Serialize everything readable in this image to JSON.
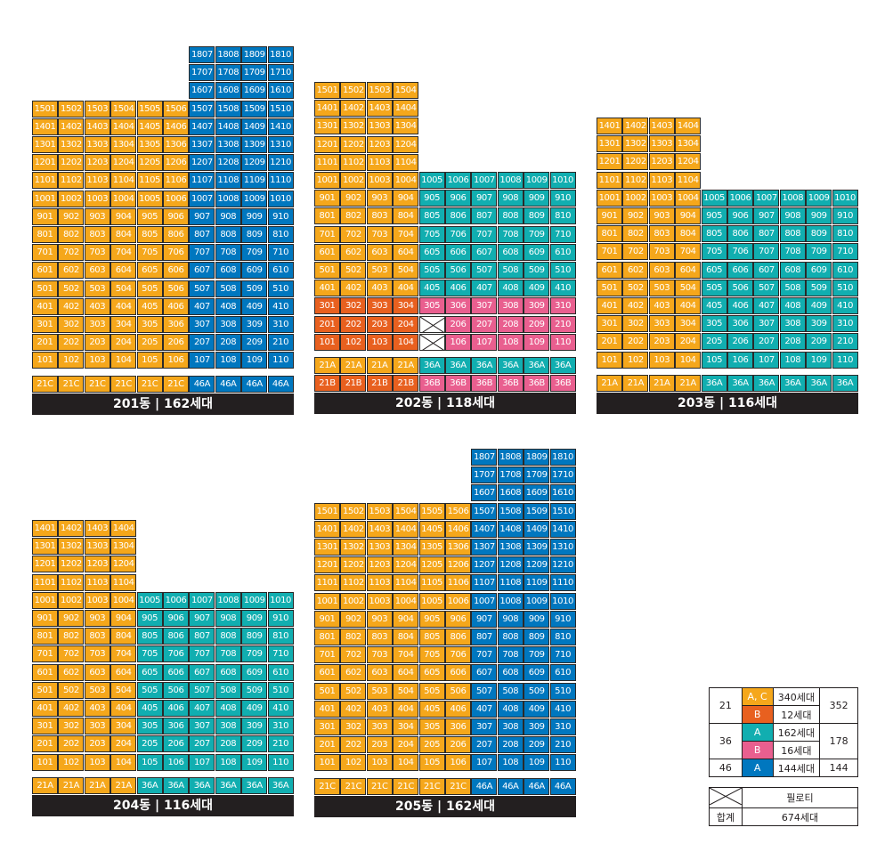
{
  "colors": {
    "O": "#f5a71b",
    "B": "#0077bf",
    "T": "#11aeb0",
    "R": "#e8601f",
    "P": "#e95f8f"
  },
  "buildings": [
    {
      "key": "b201",
      "title": "201동 | 162세대",
      "floors": 18,
      "units": 10,
      "types": [
        "21C",
        "21C",
        "21C",
        "21C",
        "21C",
        "21C",
        "46A",
        "46A",
        "46A",
        "46A"
      ],
      "bands": [
        [
          "O",
          1,
          15,
          1,
          6
        ],
        [
          "B",
          1,
          18,
          7,
          10
        ]
      ]
    },
    {
      "key": "b202",
      "title": "202동 | 118세대",
      "floors": 15,
      "units": 10,
      "types": [
        "21A",
        "21A",
        "21A",
        "21A",
        "36A",
        "36A",
        "36A",
        "36A",
        "36A",
        "36A"
      ],
      "types2": [
        "21B",
        "21B",
        "21B",
        "21B",
        "36B",
        "36B",
        "36B",
        "36B",
        "36B",
        "36B"
      ],
      "pilotis": [
        "205",
        "305_x"
      ],
      "bands": [
        [
          "O",
          4,
          15,
          1,
          4
        ],
        [
          "T",
          4,
          10,
          5,
          10
        ],
        [
          "R",
          1,
          3,
          1,
          4
        ],
        [
          "P",
          1,
          3,
          5,
          10
        ]
      ]
    },
    {
      "key": "b203",
      "title": "203동 | 116세대",
      "floors": 14,
      "units": 10,
      "types": [
        "21A",
        "21A",
        "21A",
        "21A",
        "36A",
        "36A",
        "36A",
        "36A",
        "36A",
        "36A"
      ],
      "bands": [
        [
          "O",
          1,
          14,
          1,
          4
        ],
        [
          "T",
          1,
          10,
          5,
          10
        ]
      ]
    },
    {
      "key": "b204",
      "title": "204동 | 116세대",
      "floors": 14,
      "units": 10,
      "types": [
        "21A",
        "21A",
        "21A",
        "21A",
        "36A",
        "36A",
        "36A",
        "36A",
        "36A",
        "36A"
      ],
      "bands": [
        [
          "O",
          1,
          14,
          1,
          4
        ],
        [
          "T",
          1,
          10,
          5,
          10
        ]
      ]
    },
    {
      "key": "b205",
      "title": "205동 | 162세대",
      "floors": 18,
      "units": 10,
      "types": [
        "21C",
        "21C",
        "21C",
        "21C",
        "21C",
        "21C",
        "46A",
        "46A",
        "46A",
        "46A"
      ],
      "bands": [
        [
          "O",
          1,
          15,
          1,
          6
        ],
        [
          "B",
          1,
          18,
          7,
          10
        ]
      ]
    }
  ],
  "legend": {
    "row1": {
      "area": "21",
      "type1": "A, C",
      "count1": "340세대",
      "total": "352",
      "type2": "B",
      "count2": "12세대"
    },
    "row2": {
      "area": "36",
      "type1": "A",
      "count1": "162세대",
      "total": "178",
      "type2": "B",
      "count2": "16세대"
    },
    "row3": {
      "area": "46",
      "type1": "A",
      "count1": "144세대",
      "total": "144"
    },
    "pilotis_label": "필로티",
    "sum_label": "합계",
    "sum_value": "674세대"
  }
}
